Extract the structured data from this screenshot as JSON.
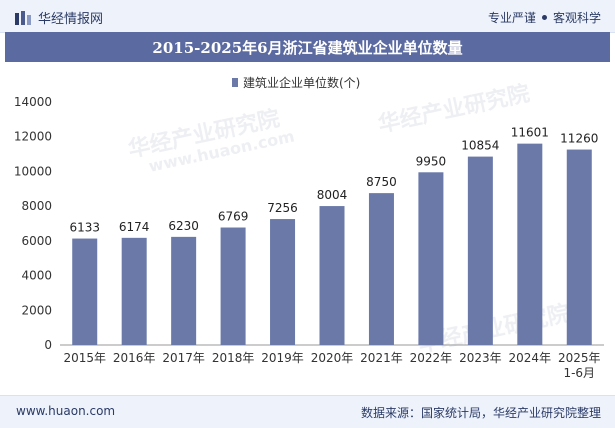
{
  "header": {
    "brand": "华经情报网",
    "tags": [
      "专业严谨",
      "客观科学"
    ]
  },
  "title": "2015-2025年6月浙江省建筑业企业单位数量",
  "footer": {
    "site": "www.huaon.com",
    "source": "数据来源：国家统计局，华经产业研究院整理"
  },
  "colors": {
    "bar": "#6a79a8",
    "title_bg": "#5b6aa0",
    "header_bg": "#eef3fb",
    "text": "#2b3a66"
  },
  "chart_data": {
    "type": "bar",
    "categories": [
      "2015年",
      "2016年",
      "2017年",
      "2018年",
      "2019年",
      "2020年",
      "2021年",
      "2022年",
      "2023年",
      "2024年",
      "2025年 1-6月"
    ],
    "series": [
      {
        "name": "建筑业企业单位数(个)",
        "values": [
          6133,
          6174,
          6230,
          6769,
          7256,
          8004,
          8750,
          9950,
          10854,
          11601,
          11260
        ]
      }
    ],
    "yticks": [
      "0",
      "2000",
      "4000",
      "6000",
      "8000",
      "10000",
      "12000",
      "14000"
    ],
    "ylim": [
      0,
      14000
    ],
    "legend": "top-center",
    "grid": false
  }
}
